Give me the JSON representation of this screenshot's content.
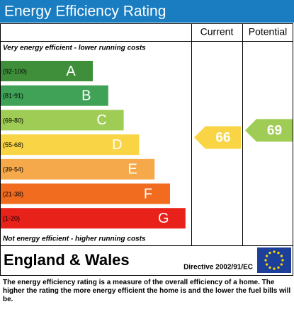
{
  "chart_data": {
    "type": "epc",
    "title": "Energy Efficiency Rating",
    "columns": [
      "Current",
      "Potential"
    ],
    "top_note": "Very energy efficient - lower running costs",
    "bottom_note": "Not energy efficient - higher running costs",
    "bands": [
      {
        "range": "(92-100)",
        "letter": "A",
        "color": "#3f8f3a"
      },
      {
        "range": "(81-91)",
        "letter": "B",
        "color": "#3fa257"
      },
      {
        "range": "(69-80)",
        "letter": "C",
        "color": "#9fcc55"
      },
      {
        "range": "(55-68)",
        "letter": "D",
        "color": "#f9d545"
      },
      {
        "range": "(39-54)",
        "letter": "E",
        "color": "#f6a94a"
      },
      {
        "range": "(21-38)",
        "letter": "F",
        "color": "#f26c1f"
      },
      {
        "range": "(1-20)",
        "letter": "G",
        "color": "#e8221b"
      }
    ],
    "values": [
      66,
      69
    ],
    "region": "England & Wales",
    "directive": "Directive 2002/91/EC",
    "footer": "The energy efficiency rating is a measure of the overall efficiency of a home. The higher the rating the more energy efficient the home is and the lower the fuel bills will be."
  }
}
